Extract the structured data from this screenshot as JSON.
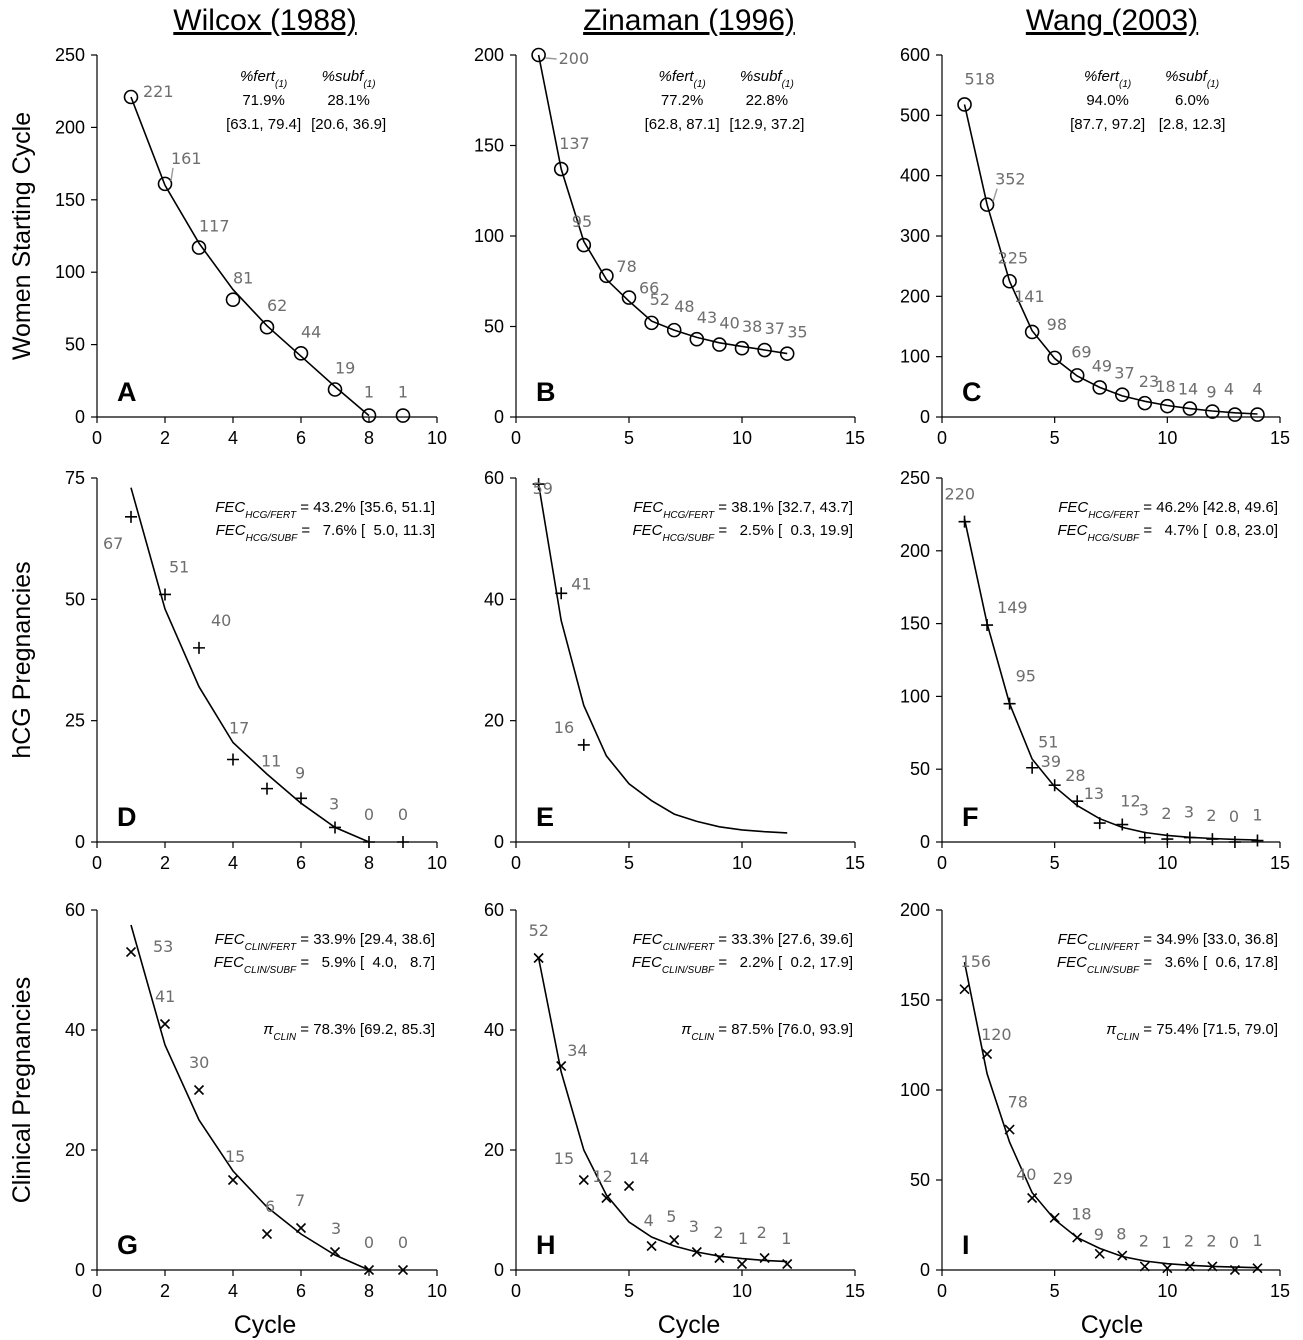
{
  "columns": [
    "Wilcox (1988)",
    "Zinaman (1996)",
    "Wang (2003)"
  ],
  "row_labels": [
    "Women Starting Cycle",
    "hCG Pregnancies",
    "Clinical Pregnancies"
  ],
  "x_label": "Cycle",
  "colors": {
    "markers": "#000000",
    "point_labels": "#6e6e6e",
    "fit": "#000000"
  },
  "chart_data": [
    {
      "panel": "A",
      "type": "line",
      "marker": "circle",
      "x": [
        1,
        2,
        3,
        4,
        5,
        6,
        7,
        8,
        9
      ],
      "y": [
        221,
        161,
        117,
        81,
        62,
        44,
        19,
        1,
        1
      ],
      "labels": [
        "221",
        "161",
        "117",
        "81",
        "62",
        "44",
        "19",
        "1",
        "1"
      ],
      "fit": {
        "x": [
          1,
          2,
          3,
          4,
          5,
          6,
          7,
          8
        ],
        "y": [
          221,
          160,
          120,
          88,
          63,
          42,
          21,
          1
        ]
      },
      "xlim": [
        0,
        10
      ],
      "xticks": [
        0,
        2,
        4,
        6,
        8,
        10
      ],
      "ylim": [
        0,
        250
      ],
      "yticks": [
        0,
        50,
        100,
        150,
        200,
        250
      ],
      "annotations": {
        "type": "fert",
        "fert_label": "%fert",
        "subf_label": "%subf",
        "sub": "(1)",
        "fert_value": "71.9%",
        "subf_value": "28.1%",
        "fert_ci": "[63.1, 79.4]",
        "subf_ci": "[20.6, 36.9]"
      }
    },
    {
      "panel": "B",
      "type": "line",
      "marker": "circle",
      "x": [
        1,
        2,
        3,
        4,
        5,
        6,
        7,
        8,
        9,
        10,
        11,
        12
      ],
      "y": [
        200,
        137,
        95,
        78,
        66,
        52,
        48,
        43,
        40,
        38,
        37,
        35
      ],
      "labels": [
        "200",
        "137",
        "95",
        "78",
        "66",
        "52",
        "48",
        "43",
        "40",
        "38",
        "37",
        "35"
      ],
      "fit": {
        "x": [
          1,
          2,
          3,
          4,
          5,
          6,
          7,
          8,
          9,
          10,
          11,
          12
        ],
        "y": [
          200,
          137,
          97,
          76,
          64,
          53,
          48,
          44,
          41,
          39,
          37,
          35
        ]
      },
      "xlim": [
        0,
        15
      ],
      "xticks": [
        0,
        5,
        10,
        15
      ],
      "ylim": [
        0,
        200
      ],
      "yticks": [
        0,
        50,
        100,
        150,
        200
      ],
      "annotations": {
        "type": "fert",
        "fert_label": "%fert",
        "subf_label": "%subf",
        "sub": "(1)",
        "fert_value": "77.2%",
        "subf_value": "22.8%",
        "fert_ci": "[62.8, 87.1]",
        "subf_ci": "[12.9, 37.2]"
      }
    },
    {
      "panel": "C",
      "type": "line",
      "marker": "circle",
      "x": [
        1,
        2,
        3,
        4,
        5,
        6,
        7,
        8,
        9,
        10,
        11,
        12,
        13,
        14
      ],
      "y": [
        518,
        352,
        225,
        141,
        98,
        69,
        49,
        37,
        23,
        18,
        14,
        9,
        4,
        4
      ],
      "labels": [
        "518",
        "352",
        "225",
        "141",
        "98",
        "69",
        "49",
        "37",
        "23",
        "18",
        "14",
        "9",
        "4",
        "4"
      ],
      "fit": {
        "x": [
          1,
          2,
          3,
          4,
          5,
          6,
          7,
          8,
          9,
          10,
          11,
          12,
          13,
          14
        ],
        "y": [
          518,
          352,
          225,
          143,
          97,
          68,
          49,
          35,
          26,
          19,
          14,
          10,
          7,
          5
        ]
      },
      "xlim": [
        0,
        15
      ],
      "xticks": [
        0,
        5,
        10,
        15
      ],
      "ylim": [
        0,
        600
      ],
      "yticks": [
        0,
        100,
        200,
        300,
        400,
        500,
        600
      ],
      "annotations": {
        "type": "fert",
        "fert_label": "%fert",
        "subf_label": "%subf",
        "sub": "(1)",
        "fert_value": "94.0%",
        "subf_value": "6.0%",
        "fert_ci": "[87.7, 97.2]",
        "subf_ci": "[2.8, 12.3]"
      }
    },
    {
      "panel": "D",
      "type": "line",
      "marker": "plus",
      "x": [
        1,
        2,
        3,
        4,
        5,
        6,
        7,
        8,
        9
      ],
      "y": [
        67,
        51,
        40,
        17,
        11,
        9,
        3,
        0,
        0
      ],
      "labels": [
        "67",
        "51",
        "40",
        "17",
        "11",
        "9",
        "3",
        "0",
        "0"
      ],
      "fit": {
        "x": [
          1,
          2,
          3,
          4,
          5,
          6,
          7,
          8
        ],
        "y": [
          73,
          48,
          32,
          20.5,
          14,
          8,
          3,
          0
        ]
      },
      "xlim": [
        0,
        10
      ],
      "xticks": [
        0,
        2,
        4,
        6,
        8,
        10
      ],
      "ylim": [
        0,
        75
      ],
      "yticks": [
        0,
        25,
        50,
        75
      ],
      "annotations": {
        "type": "fec",
        "lines": [
          {
            "base": "FEC",
            "sub": "HCG/FERT",
            "text": " = 43.2% [35.6, 51.1]"
          },
          {
            "base": "FEC",
            "sub": "HCG/SUBF",
            "text": " =   7.6% [  5.0, 11.3]"
          }
        ]
      }
    },
    {
      "panel": "E",
      "type": "line",
      "marker": "plus",
      "x": [
        1,
        2,
        3
      ],
      "y": [
        59,
        41,
        16
      ],
      "labels": [
        "59",
        "41",
        "16"
      ],
      "fit": {
        "x": [
          1,
          2,
          3,
          4,
          5,
          6,
          7,
          8,
          9,
          10,
          11,
          12
        ],
        "y": [
          59,
          36.5,
          22.5,
          14.2,
          9.6,
          6.8,
          4.6,
          3.4,
          2.5,
          2,
          1.7,
          1.5
        ]
      },
      "xlim": [
        0,
        15
      ],
      "xticks": [
        0,
        5,
        10,
        15
      ],
      "ylim": [
        0,
        60
      ],
      "yticks": [
        0,
        20,
        40,
        60
      ],
      "annotations": {
        "type": "fec",
        "lines": [
          {
            "base": "FEC",
            "sub": "HCG/FERT",
            "text": " = 38.1% [32.7, 43.7]"
          },
          {
            "base": "FEC",
            "sub": "HCG/SUBF",
            "text": " =   2.5% [  0.3, 19.9]"
          }
        ]
      }
    },
    {
      "panel": "F",
      "type": "line",
      "marker": "plus",
      "x": [
        1,
        2,
        3,
        4,
        5,
        6,
        7,
        8,
        9,
        10,
        11,
        12,
        13,
        14
      ],
      "y": [
        220,
        149,
        95,
        51,
        39,
        28,
        13,
        12,
        3,
        2,
        3,
        2,
        0,
        1
      ],
      "labels": [
        "220",
        "149",
        "95",
        "51",
        "39",
        "28",
        "13",
        "12",
        "3",
        "2",
        "3",
        "2",
        "0",
        "1"
      ],
      "fit": {
        "x": [
          1,
          2,
          3,
          4,
          5,
          6,
          7,
          8,
          9,
          10,
          11,
          12,
          13,
          14
        ],
        "y": [
          222,
          150,
          95,
          57,
          38,
          25,
          16,
          10,
          6.5,
          4.5,
          3.2,
          2.4,
          1.8,
          1.4
        ]
      },
      "xlim": [
        0,
        15
      ],
      "xticks": [
        0,
        5,
        10,
        15
      ],
      "ylim": [
        0,
        250
      ],
      "yticks": [
        0,
        50,
        100,
        150,
        200,
        250
      ],
      "annotations": {
        "type": "fec",
        "lines": [
          {
            "base": "FEC",
            "sub": "HCG/FERT",
            "text": " = 46.2% [42.8, 49.6]"
          },
          {
            "base": "FEC",
            "sub": "HCG/SUBF",
            "text": " =   4.7% [  0.8, 23.0]"
          }
        ]
      }
    },
    {
      "panel": "G",
      "type": "line",
      "marker": "cross",
      "x": [
        1,
        2,
        3,
        4,
        5,
        6,
        7,
        8,
        9
      ],
      "y": [
        53,
        41,
        30,
        15,
        6,
        7,
        3,
        0,
        0
      ],
      "labels": [
        "53",
        "41",
        "30",
        "15",
        "6",
        "7",
        "3",
        "0",
        "0"
      ],
      "fit": {
        "x": [
          1,
          2,
          3,
          4,
          5,
          6,
          7,
          8
        ],
        "y": [
          57.5,
          37.5,
          25,
          16.5,
          10.5,
          6,
          2.5,
          0
        ]
      },
      "xlim": [
        0,
        10
      ],
      "xticks": [
        0,
        2,
        4,
        6,
        8,
        10
      ],
      "ylim": [
        0,
        60
      ],
      "yticks": [
        0,
        20,
        40,
        60
      ],
      "annotations": {
        "type": "fec",
        "lines": [
          {
            "base": "FEC",
            "sub": "CLIN/FERT",
            "text": " = 33.9% [29.4, 38.6]"
          },
          {
            "base": "FEC",
            "sub": "CLIN/SUBF",
            "text": " =   5.9% [  4.0,   8.7]"
          }
        ],
        "pi": {
          "base": "π",
          "sub": "CLIN",
          "text": " = 78.3% [69.2, 85.3]"
        }
      }
    },
    {
      "panel": "H",
      "type": "line",
      "marker": "cross",
      "x": [
        1,
        2,
        3,
        4,
        5,
        6,
        7,
        8,
        9,
        10,
        11,
        12
      ],
      "y": [
        52,
        34,
        15,
        12,
        14,
        4,
        5,
        3,
        2,
        1,
        2,
        1
      ],
      "labels": [
        "52",
        "34",
        "15",
        "12",
        "14",
        "4",
        "5",
        "3",
        "2",
        "1",
        "2",
        "1"
      ],
      "fit": {
        "x": [
          1,
          2,
          3,
          4,
          5,
          6,
          7,
          8,
          9,
          10,
          11,
          12
        ],
        "y": [
          52,
          33,
          20,
          12.5,
          8,
          5.5,
          4,
          3,
          2.3,
          1.9,
          1.6,
          1.4
        ]
      },
      "xlim": [
        0,
        15
      ],
      "xticks": [
        0,
        5,
        10,
        15
      ],
      "ylim": [
        0,
        60
      ],
      "yticks": [
        0,
        20,
        40,
        60
      ],
      "annotations": {
        "type": "fec",
        "lines": [
          {
            "base": "FEC",
            "sub": "CLIN/FERT",
            "text": " = 33.3% [27.6, 39.6]"
          },
          {
            "base": "FEC",
            "sub": "CLIN/SUBF",
            "text": " =   2.2% [  0.2, 17.9]"
          }
        ],
        "pi": {
          "base": "π",
          "sub": "CLIN",
          "text": " = 87.5% [76.0, 93.9]"
        }
      }
    },
    {
      "panel": "I",
      "type": "line",
      "marker": "cross",
      "x": [
        1,
        2,
        3,
        4,
        5,
        6,
        7,
        8,
        9,
        10,
        11,
        12,
        13,
        14
      ],
      "y": [
        156,
        120,
        78,
        40,
        29,
        18,
        9,
        8,
        2,
        1,
        2,
        2,
        0,
        1
      ],
      "labels": [
        "156",
        "120",
        "78",
        "40",
        "29",
        "18",
        "9",
        "8",
        "2",
        "1",
        "2",
        "2",
        "0",
        "1"
      ],
      "fit": {
        "x": [
          1,
          2,
          3,
          4,
          5,
          6,
          7,
          8,
          9,
          10,
          11,
          12,
          13,
          14
        ],
        "y": [
          171,
          109,
          71,
          43,
          28,
          18,
          12,
          7.5,
          5,
          3.5,
          2.6,
          2,
          1.6,
          1.3
        ]
      },
      "xlim": [
        0,
        15
      ],
      "xticks": [
        0,
        5,
        10,
        15
      ],
      "ylim": [
        0,
        200
      ],
      "yticks": [
        0,
        50,
        100,
        150,
        200
      ],
      "annotations": {
        "type": "fec",
        "lines": [
          {
            "base": "FEC",
            "sub": "CLIN/FERT",
            "text": " = 34.9% [33.0, 36.8]"
          },
          {
            "base": "FEC",
            "sub": "CLIN/SUBF",
            "text": " =   3.6% [  0.6, 17.8]"
          }
        ],
        "pi": {
          "base": "π",
          "sub": "CLIN",
          "text": " = 75.4% [71.5, 79.0]"
        }
      }
    }
  ]
}
